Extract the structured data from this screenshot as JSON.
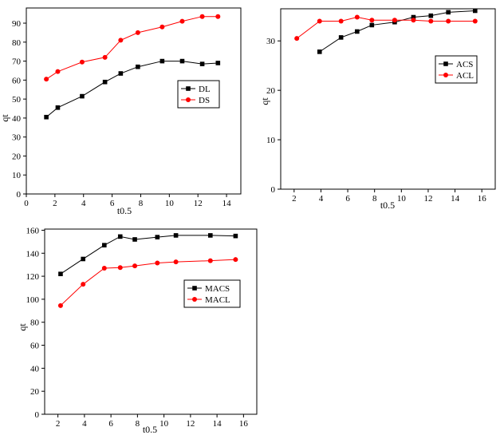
{
  "chart_data": [
    {
      "id": "chart1",
      "type": "line",
      "xlabel": "t0.5",
      "ylabel": "qt",
      "xlim": [
        0,
        15
      ],
      "ylim": [
        0,
        98
      ],
      "xticks": [
        0,
        2,
        4,
        6,
        8,
        10,
        12,
        14
      ],
      "yticks": [
        0,
        10,
        20,
        30,
        40,
        50,
        60,
        70,
        80,
        90
      ],
      "legend_position": "right-middle",
      "series": [
        {
          "name": "DL",
          "marker": "square",
          "color": "#000000",
          "x": [
            1.4,
            2.2,
            3.9,
            5.5,
            6.6,
            7.8,
            9.5,
            10.9,
            12.3,
            13.4
          ],
          "y": [
            40.5,
            45.5,
            51.5,
            59,
            63.5,
            67,
            70,
            70,
            68.5,
            69
          ]
        },
        {
          "name": "DS",
          "marker": "circle",
          "color": "#ff0000",
          "x": [
            1.4,
            2.2,
            3.9,
            5.5,
            6.6,
            7.8,
            9.5,
            10.9,
            12.3,
            13.4
          ],
          "y": [
            60.5,
            64.5,
            69.5,
            72,
            81,
            85,
            88,
            91,
            93.5,
            93.5
          ]
        }
      ]
    },
    {
      "id": "chart2",
      "type": "line",
      "xlabel": "t0.5",
      "ylabel": "qt",
      "xlim": [
        1,
        17
      ],
      "ylim": [
        0,
        36.5
      ],
      "xticks": [
        2,
        4,
        6,
        8,
        10,
        12,
        14,
        16
      ],
      "yticks": [
        0,
        10,
        20,
        30
      ],
      "legend_position": "right-middle",
      "series": [
        {
          "name": "ACS",
          "marker": "square",
          "color": "#000000",
          "x": [
            3.9,
            5.5,
            6.7,
            7.8,
            9.5,
            10.9,
            12.2,
            13.5,
            15.5
          ],
          "y": [
            27.8,
            30.7,
            31.9,
            33.2,
            33.8,
            34.8,
            35.1,
            35.8,
            36.1
          ]
        },
        {
          "name": "ACL",
          "marker": "circle",
          "color": "#ff0000",
          "x": [
            2.2,
            3.9,
            5.5,
            6.7,
            7.8,
            9.5,
            10.9,
            12.2,
            13.5,
            15.5
          ],
          "y": [
            30.5,
            34.0,
            34.0,
            34.8,
            34.2,
            34.2,
            34.2,
            34.0,
            34.0,
            34.0
          ]
        }
      ]
    },
    {
      "id": "chart3",
      "type": "line",
      "xlabel": "t0.5",
      "ylabel": "qt",
      "xlim": [
        1,
        17
      ],
      "ylim": [
        0,
        161
      ],
      "xticks": [
        2,
        4,
        6,
        8,
        10,
        12,
        14,
        16
      ],
      "yticks": [
        0,
        20,
        40,
        60,
        80,
        100,
        120,
        140,
        160
      ],
      "legend_position": "right-middle",
      "series": [
        {
          "name": "MACS",
          "marker": "square",
          "color": "#000000",
          "x": [
            2.2,
            3.9,
            5.5,
            6.7,
            7.8,
            9.5,
            10.9,
            13.5,
            15.4
          ],
          "y": [
            122,
            135,
            147,
            154.5,
            152,
            154,
            155.5,
            155.5,
            155
          ]
        },
        {
          "name": "MACL",
          "marker": "circle",
          "color": "#ff0000",
          "x": [
            2.2,
            3.9,
            5.5,
            6.7,
            7.8,
            9.5,
            10.9,
            13.5,
            15.4
          ],
          "y": [
            94.5,
            113,
            127,
            127.5,
            129,
            131.5,
            132.5,
            133.5,
            134.5
          ]
        }
      ]
    }
  ]
}
